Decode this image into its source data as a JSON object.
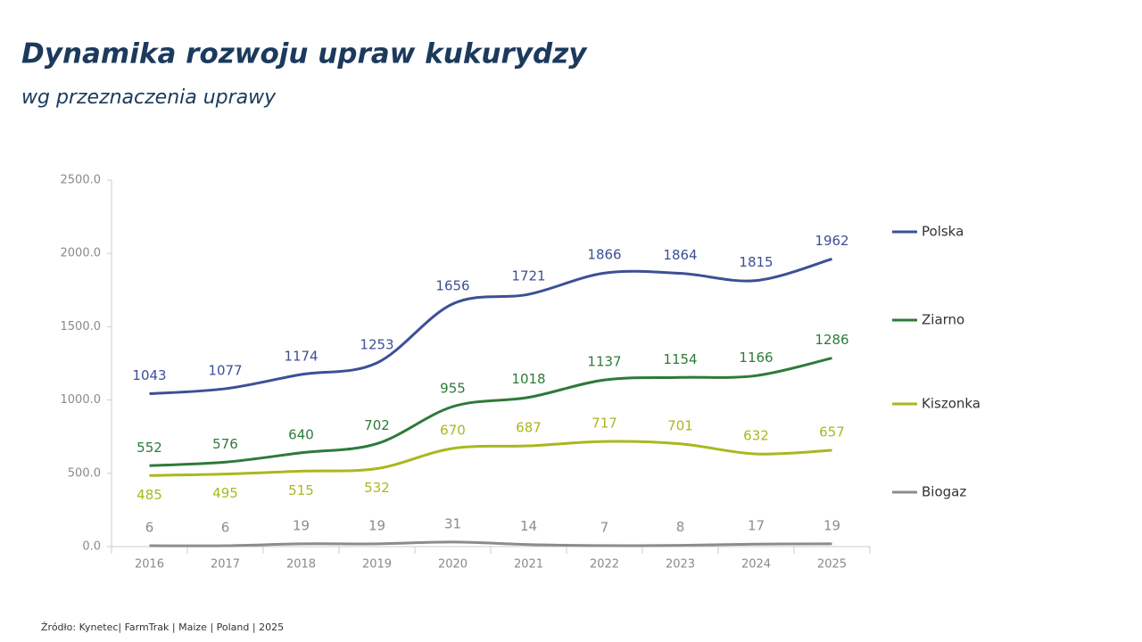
{
  "chart_data": {
    "type": "line",
    "title": "Dynamika rozwoju upraw kukurydzy",
    "subtitle": "wg przeznaczenia uprawy",
    "source": "Źródło: Kynetec| FarmTrak | Maize | Poland | 2025",
    "categories": [
      "2016",
      "2017",
      "2018",
      "2019",
      "2020",
      "2021",
      "2022",
      "2023",
      "2024",
      "2025"
    ],
    "series": [
      {
        "name": "Polska",
        "color": "#3d4f96",
        "values": [
          1043,
          1077,
          1174,
          1253,
          1656,
          1721,
          1866,
          1864,
          1815,
          1962
        ]
      },
      {
        "name": "Ziarno",
        "color": "#2e7a3a",
        "values": [
          552,
          576,
          640,
          702,
          955,
          1018,
          1137,
          1154,
          1166,
          1286
        ]
      },
      {
        "name": "Kiszonka",
        "color": "#a9b81e",
        "values": [
          485,
          495,
          515,
          532,
          670,
          687,
          717,
          701,
          632,
          657
        ]
      },
      {
        "name": "Biogaz",
        "color": "#8c8c8c",
        "values": [
          6,
          6,
          19,
          19,
          31,
          14,
          7,
          8,
          17,
          19
        ]
      }
    ],
    "ylim": [
      0,
      2500
    ],
    "yticks": [
      {
        "value": 0,
        "label": "0.0"
      },
      {
        "value": 500,
        "label": "500.0"
      },
      {
        "value": 1000,
        "label": "1000.0"
      },
      {
        "value": 1500,
        "label": "1500.0"
      },
      {
        "value": 2000,
        "label": "2000.0"
      },
      {
        "value": 2500,
        "label": "2500.0"
      }
    ],
    "legend": "right"
  }
}
